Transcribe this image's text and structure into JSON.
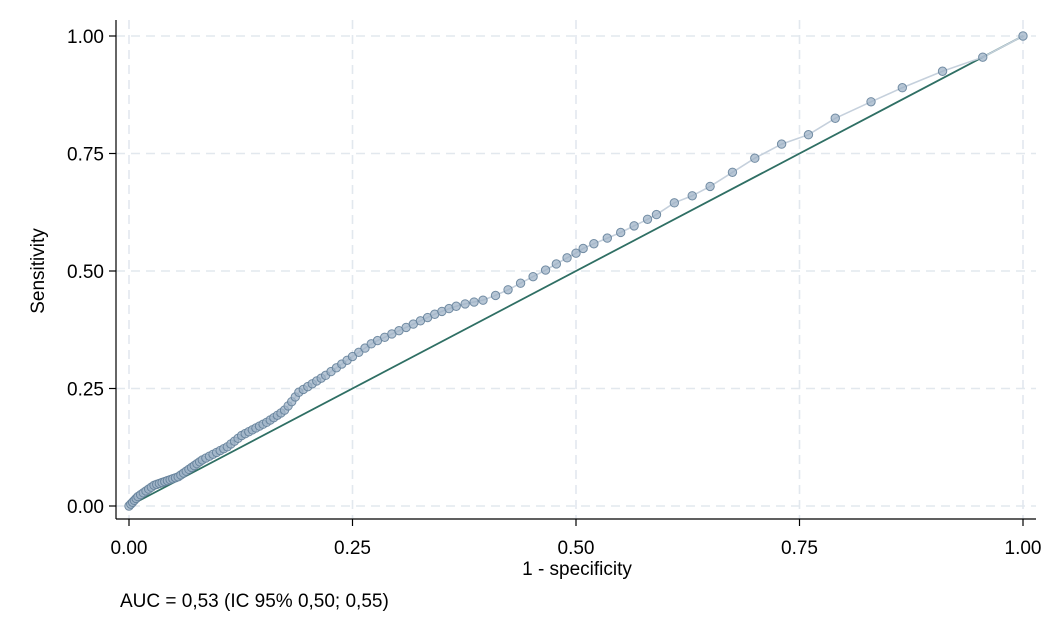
{
  "chart_data": {
    "type": "line",
    "xlabel": "1 - specificity",
    "ylabel": "Sensitivity",
    "xlim": [
      0,
      1
    ],
    "ylim": [
      0,
      1
    ],
    "grid": true,
    "x_ticks": [
      0,
      0.25,
      0.5,
      0.75,
      1
    ],
    "x_tick_labels": [
      "0.00",
      "0.25",
      "0.50",
      "0.75",
      "1.00"
    ],
    "y_ticks": [
      0,
      0.25,
      0.5,
      0.75,
      1
    ],
    "y_tick_labels": [
      "0.00",
      "0.25",
      "0.50",
      "0.75",
      "1.00"
    ],
    "note": "AUC = 0,53 (IC 95% 0,50; 0,55)",
    "colors": {
      "roc_line": "#c5d0dc",
      "roc_marker_fill": "#9fb3c7",
      "roc_marker_stroke": "#5f7c97",
      "reference_line": "#2f6f64"
    },
    "series": [
      {
        "name": "ROC curve",
        "marker": "circle",
        "x": [
          0,
          0.002,
          0.004,
          0.006,
          0.008,
          0.01,
          0.013,
          0.016,
          0.019,
          0.022,
          0.025,
          0.028,
          0.031,
          0.034,
          0.037,
          0.04,
          0.043,
          0.046,
          0.049,
          0.052,
          0.055,
          0.058,
          0.061,
          0.064,
          0.067,
          0.07,
          0.073,
          0.076,
          0.079,
          0.082,
          0.086,
          0.09,
          0.094,
          0.098,
          0.102,
          0.106,
          0.11,
          0.114,
          0.118,
          0.122,
          0.126,
          0.13,
          0.134,
          0.138,
          0.142,
          0.146,
          0.15,
          0.154,
          0.158,
          0.162,
          0.166,
          0.17,
          0.174,
          0.178,
          0.182,
          0.186,
          0.19,
          0.195,
          0.2,
          0.205,
          0.21,
          0.215,
          0.22,
          0.226,
          0.232,
          0.238,
          0.244,
          0.25,
          0.257,
          0.264,
          0.271,
          0.278,
          0.286,
          0.294,
          0.302,
          0.31,
          0.318,
          0.326,
          0.334,
          0.342,
          0.35,
          0.358,
          0.366,
          0.376,
          0.386,
          0.396,
          0.41,
          0.424,
          0.438,
          0.452,
          0.466,
          0.478,
          0.49,
          0.5,
          0.508,
          0.52,
          0.535,
          0.55,
          0.565,
          0.58,
          0.59,
          0.61,
          0.63,
          0.65,
          0.675,
          0.7,
          0.73,
          0.76,
          0.79,
          0.83,
          0.865,
          0.91,
          0.955,
          1.0
        ],
        "y": [
          0,
          0.004,
          0.008,
          0.012,
          0.016,
          0.02,
          0.024,
          0.028,
          0.032,
          0.036,
          0.04,
          0.044,
          0.046,
          0.048,
          0.05,
          0.052,
          0.054,
          0.056,
          0.058,
          0.06,
          0.062,
          0.066,
          0.07,
          0.074,
          0.078,
          0.082,
          0.086,
          0.09,
          0.094,
          0.098,
          0.102,
          0.106,
          0.11,
          0.114,
          0.118,
          0.122,
          0.126,
          0.132,
          0.138,
          0.144,
          0.15,
          0.154,
          0.158,
          0.162,
          0.166,
          0.17,
          0.174,
          0.178,
          0.183,
          0.188,
          0.193,
          0.198,
          0.204,
          0.213,
          0.222,
          0.232,
          0.242,
          0.248,
          0.254,
          0.26,
          0.266,
          0.272,
          0.278,
          0.286,
          0.294,
          0.302,
          0.31,
          0.318,
          0.327,
          0.336,
          0.345,
          0.352,
          0.359,
          0.366,
          0.373,
          0.38,
          0.387,
          0.394,
          0.401,
          0.408,
          0.414,
          0.42,
          0.425,
          0.43,
          0.434,
          0.438,
          0.448,
          0.46,
          0.474,
          0.488,
          0.502,
          0.515,
          0.528,
          0.538,
          0.548,
          0.558,
          0.57,
          0.582,
          0.596,
          0.61,
          0.62,
          0.645,
          0.66,
          0.68,
          0.71,
          0.74,
          0.77,
          0.79,
          0.825,
          0.86,
          0.89,
          0.925,
          0.955,
          1.0
        ]
      },
      {
        "name": "Reference line",
        "x": [
          0,
          1
        ],
        "y": [
          0,
          1
        ]
      }
    ]
  }
}
